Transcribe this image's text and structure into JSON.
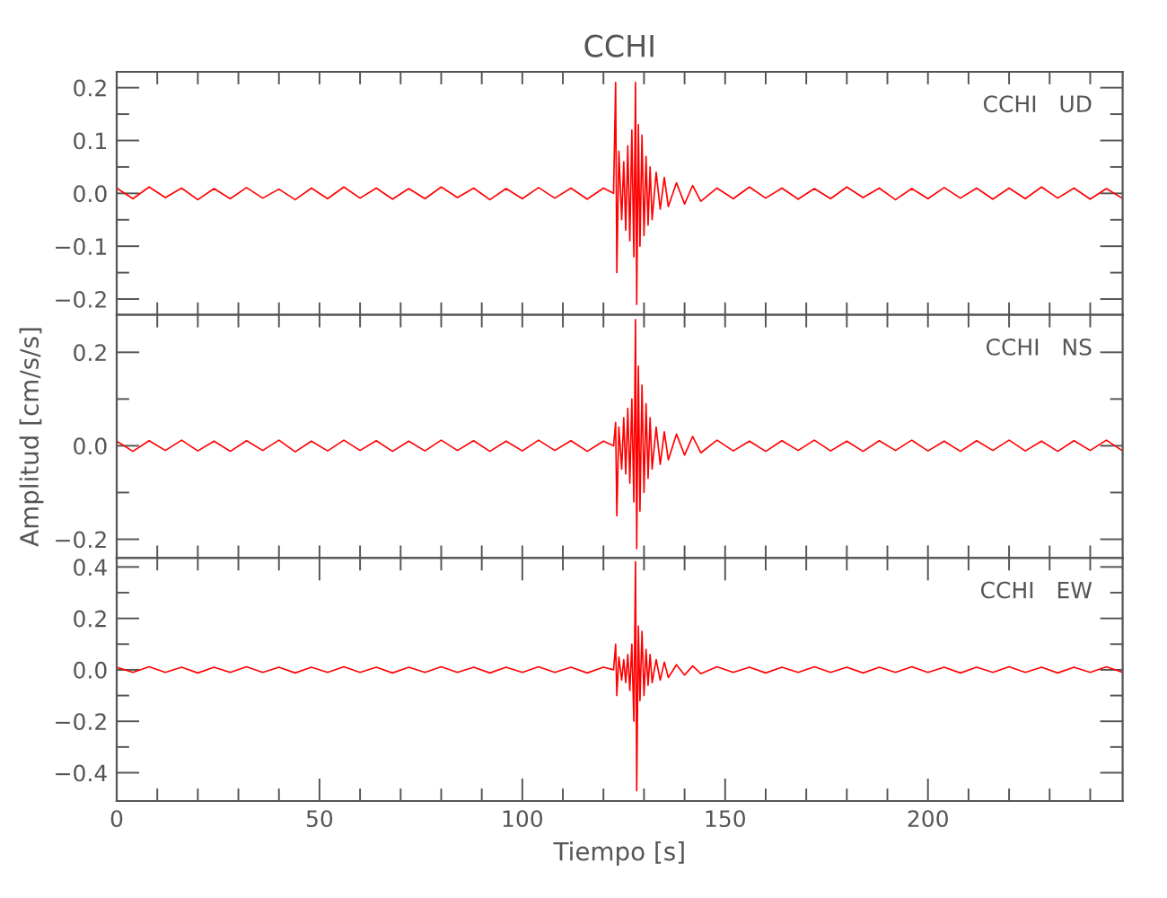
{
  "chart_data": [
    {
      "type": "line",
      "title": "CCHI",
      "annotations": [
        "CCHI   UD"
      ],
      "xlim": [
        0,
        248
      ],
      "ylim": [
        -0.23,
        0.23
      ],
      "tick_labels": "y",
      "grid": false,
      "legend": false,
      "xticks": [
        {
          "value": 0,
          "label": null
        },
        {
          "value": 10,
          "label": null
        },
        {
          "value": 20,
          "label": null
        },
        {
          "value": 30,
          "label": null
        },
        {
          "value": 40,
          "label": null
        },
        {
          "value": 50,
          "label": null
        },
        {
          "value": 60,
          "label": null
        },
        {
          "value": 70,
          "label": null
        },
        {
          "value": 80,
          "label": null
        },
        {
          "value": 90,
          "label": null
        },
        {
          "value": 100,
          "label": null
        },
        {
          "value": 110,
          "label": null
        },
        {
          "value": 120,
          "label": null
        },
        {
          "value": 130,
          "label": null
        },
        {
          "value": 140,
          "label": null
        },
        {
          "value": 150,
          "label": null
        },
        {
          "value": 160,
          "label": null
        },
        {
          "value": 170,
          "label": null
        },
        {
          "value": 180,
          "label": null
        },
        {
          "value": 190,
          "label": null
        },
        {
          "value": 200,
          "label": null
        },
        {
          "value": 210,
          "label": null
        },
        {
          "value": 220,
          "label": null
        },
        {
          "value": 230,
          "label": null
        },
        {
          "value": 240,
          "label": null
        }
      ],
      "yticks": [
        {
          "value": -0.2,
          "label": "−0.2"
        },
        {
          "value": -0.15,
          "label": null
        },
        {
          "value": -0.1,
          "label": "−0.1"
        },
        {
          "value": -0.05,
          "label": null
        },
        {
          "value": 0,
          "label": "0.0"
        },
        {
          "value": 0.05,
          "label": null
        },
        {
          "value": 0.1,
          "label": "0.1"
        },
        {
          "value": 0.15,
          "label": null
        },
        {
          "value": 0.2,
          "label": "0.2"
        }
      ],
      "series": [
        {
          "color": "#ff0000",
          "x": [
            0,
            4,
            8,
            12,
            16,
            20,
            24,
            28,
            32,
            36,
            40,
            44,
            48,
            52,
            56,
            60,
            64,
            68,
            72,
            76,
            80,
            84,
            88,
            92,
            96,
            100,
            104,
            108,
            112,
            116,
            120,
            122.5,
            123,
            123.3,
            123.8,
            124.5,
            125,
            125.5,
            126,
            126.5,
            127,
            127.5,
            127.9,
            128.2,
            128.6,
            129,
            129.5,
            130,
            130.5,
            131,
            131.5,
            132,
            133,
            134,
            135,
            136,
            138,
            140,
            142,
            144,
            148,
            152,
            156,
            160,
            164,
            168,
            172,
            176,
            180,
            184,
            188,
            192,
            196,
            200,
            204,
            208,
            212,
            216,
            220,
            224,
            228,
            232,
            236,
            240,
            244,
            248
          ],
          "values": [
            0.01,
            -0.01,
            0.012,
            -0.008,
            0.01,
            -0.012,
            0.009,
            -0.01,
            0.011,
            -0.009,
            0.008,
            -0.012,
            0.01,
            -0.01,
            0.012,
            -0.009,
            0.01,
            -0.011,
            0.009,
            -0.01,
            0.012,
            -0.008,
            0.01,
            -0.012,
            0.009,
            -0.01,
            0.011,
            -0.009,
            0.01,
            -0.011,
            0.01,
            0.0,
            0.21,
            -0.15,
            0.08,
            -0.05,
            0.06,
            -0.07,
            0.09,
            -0.09,
            0.12,
            -0.12,
            0.21,
            -0.21,
            0.13,
            -0.1,
            0.11,
            -0.08,
            0.07,
            -0.06,
            0.05,
            -0.05,
            0.04,
            -0.03,
            0.03,
            -0.025,
            0.02,
            -0.02,
            0.015,
            -0.015,
            0.01,
            -0.01,
            0.012,
            -0.009,
            0.01,
            -0.011,
            0.009,
            -0.01,
            0.012,
            -0.008,
            0.01,
            -0.012,
            0.009,
            -0.01,
            0.011,
            -0.009,
            0.01,
            -0.011,
            0.01,
            -0.01,
            0.012,
            -0.009,
            0.01,
            -0.011,
            0.009,
            -0.01
          ]
        }
      ]
    },
    {
      "type": "line",
      "ylabel": "Amplitud [cm/s/s]",
      "annotations": [
        "CCHI   NS"
      ],
      "xlim": [
        0,
        248
      ],
      "ylim": [
        -0.24,
        0.28
      ],
      "tick_labels": "y",
      "grid": false,
      "legend": false,
      "xticks": [
        {
          "value": 0,
          "label": null
        },
        {
          "value": 10,
          "label": null
        },
        {
          "value": 20,
          "label": null
        },
        {
          "value": 30,
          "label": null
        },
        {
          "value": 40,
          "label": null
        },
        {
          "value": 50,
          "label": null
        },
        {
          "value": 60,
          "label": null
        },
        {
          "value": 70,
          "label": null
        },
        {
          "value": 80,
          "label": null
        },
        {
          "value": 90,
          "label": null
        },
        {
          "value": 100,
          "label": null
        },
        {
          "value": 110,
          "label": null
        },
        {
          "value": 120,
          "label": null
        },
        {
          "value": 130,
          "label": null
        },
        {
          "value": 140,
          "label": null
        },
        {
          "value": 150,
          "label": null
        },
        {
          "value": 160,
          "label": null
        },
        {
          "value": 170,
          "label": null
        },
        {
          "value": 180,
          "label": null
        },
        {
          "value": 190,
          "label": null
        },
        {
          "value": 200,
          "label": null
        },
        {
          "value": 210,
          "label": null
        },
        {
          "value": 220,
          "label": null
        },
        {
          "value": 230,
          "label": null
        },
        {
          "value": 240,
          "label": null
        }
      ],
      "yticks": [
        {
          "value": -0.2,
          "label": "−0.2"
        },
        {
          "value": -0.1,
          "label": null
        },
        {
          "value": 0,
          "label": "0.0"
        },
        {
          "value": 0.1,
          "label": null
        },
        {
          "value": 0.2,
          "label": "0.2"
        }
      ],
      "series": [
        {
          "color": "#ff0000",
          "x": [
            0,
            4,
            8,
            12,
            16,
            20,
            24,
            28,
            32,
            36,
            40,
            44,
            48,
            52,
            56,
            60,
            64,
            68,
            72,
            76,
            80,
            84,
            88,
            92,
            96,
            100,
            104,
            108,
            112,
            116,
            120,
            122.5,
            123,
            123.3,
            123.8,
            124.5,
            125,
            125.5,
            126,
            126.5,
            127,
            127.5,
            127.9,
            128.2,
            128.6,
            129,
            129.5,
            130,
            130.5,
            131,
            131.5,
            132,
            133,
            134,
            135,
            136,
            138,
            140,
            142,
            144,
            148,
            152,
            156,
            160,
            164,
            168,
            172,
            176,
            180,
            184,
            188,
            192,
            196,
            200,
            204,
            208,
            212,
            216,
            220,
            224,
            228,
            232,
            236,
            240,
            244,
            248
          ],
          "values": [
            0.01,
            -0.012,
            0.011,
            -0.01,
            0.012,
            -0.011,
            0.01,
            -0.012,
            0.011,
            -0.01,
            0.012,
            -0.013,
            0.01,
            -0.011,
            0.012,
            -0.01,
            0.011,
            -0.012,
            0.01,
            -0.011,
            0.012,
            -0.01,
            0.011,
            -0.012,
            0.01,
            -0.011,
            0.012,
            -0.01,
            0.011,
            -0.012,
            0.01,
            0.0,
            0.05,
            -0.15,
            0.04,
            -0.05,
            0.06,
            -0.06,
            0.08,
            -0.08,
            0.1,
            -0.12,
            0.27,
            -0.22,
            0.17,
            -0.14,
            0.13,
            -0.1,
            0.09,
            -0.07,
            0.06,
            -0.05,
            0.04,
            -0.04,
            0.03,
            -0.03,
            0.025,
            -0.02,
            0.02,
            -0.015,
            0.012,
            -0.011,
            0.01,
            -0.012,
            0.011,
            -0.01,
            0.012,
            -0.011,
            0.01,
            -0.012,
            0.011,
            -0.01,
            0.012,
            -0.011,
            0.01,
            -0.012,
            0.011,
            -0.01,
            0.012,
            -0.011,
            0.01,
            -0.012,
            0.011,
            -0.01,
            0.012,
            -0.011
          ]
        }
      ]
    },
    {
      "type": "line",
      "xlabel": "Tiempo [s]",
      "annotations": [
        "CCHI   EW"
      ],
      "xlim": [
        0,
        248
      ],
      "ylim": [
        -0.51,
        0.435
      ],
      "grid": false,
      "legend": false,
      "xticks": [
        {
          "value": 0,
          "label": "0"
        },
        {
          "value": 10,
          "label": null
        },
        {
          "value": 20,
          "label": null
        },
        {
          "value": 30,
          "label": null
        },
        {
          "value": 40,
          "label": null
        },
        {
          "value": 50,
          "label": "50"
        },
        {
          "value": 60,
          "label": null
        },
        {
          "value": 70,
          "label": null
        },
        {
          "value": 80,
          "label": null
        },
        {
          "value": 90,
          "label": null
        },
        {
          "value": 100,
          "label": "100"
        },
        {
          "value": 110,
          "label": null
        },
        {
          "value": 120,
          "label": null
        },
        {
          "value": 130,
          "label": null
        },
        {
          "value": 140,
          "label": null
        },
        {
          "value": 150,
          "label": "150"
        },
        {
          "value": 160,
          "label": null
        },
        {
          "value": 170,
          "label": null
        },
        {
          "value": 180,
          "label": null
        },
        {
          "value": 190,
          "label": null
        },
        {
          "value": 200,
          "label": "200"
        },
        {
          "value": 210,
          "label": null
        },
        {
          "value": 220,
          "label": null
        },
        {
          "value": 230,
          "label": null
        },
        {
          "value": 240,
          "label": null
        }
      ],
      "yticks": [
        {
          "value": -0.4,
          "label": "−0.4"
        },
        {
          "value": -0.3,
          "label": null
        },
        {
          "value": -0.2,
          "label": "−0.2"
        },
        {
          "value": -0.1,
          "label": null
        },
        {
          "value": 0,
          "label": "0.0"
        },
        {
          "value": 0.1,
          "label": null
        },
        {
          "value": 0.2,
          "label": "0.2"
        },
        {
          "value": 0.3,
          "label": null
        },
        {
          "value": 0.4,
          "label": "0.4"
        }
      ],
      "series": [
        {
          "color": "#ff0000",
          "x": [
            0,
            4,
            8,
            12,
            16,
            20,
            24,
            28,
            32,
            36,
            40,
            44,
            48,
            52,
            56,
            60,
            64,
            68,
            72,
            76,
            80,
            84,
            88,
            92,
            96,
            100,
            104,
            108,
            112,
            116,
            120,
            122.5,
            123,
            123.3,
            123.8,
            124.5,
            125,
            125.5,
            126,
            126.5,
            127,
            127.5,
            127.9,
            128.2,
            128.6,
            129,
            129.5,
            130,
            130.5,
            131,
            131.5,
            132,
            133,
            134,
            135,
            136,
            138,
            140,
            142,
            144,
            148,
            152,
            156,
            160,
            164,
            168,
            172,
            176,
            180,
            184,
            188,
            192,
            196,
            200,
            204,
            208,
            212,
            216,
            220,
            224,
            228,
            232,
            236,
            240,
            244,
            248
          ],
          "values": [
            0.01,
            -0.01,
            0.012,
            -0.01,
            0.01,
            -0.012,
            0.01,
            -0.01,
            0.012,
            -0.01,
            0.01,
            -0.012,
            0.01,
            -0.01,
            0.012,
            -0.01,
            0.01,
            -0.012,
            0.01,
            -0.01,
            0.012,
            -0.01,
            0.01,
            -0.012,
            0.01,
            -0.01,
            0.012,
            -0.01,
            0.01,
            -0.012,
            0.01,
            0.0,
            0.1,
            -0.1,
            0.05,
            -0.04,
            0.04,
            -0.05,
            0.06,
            -0.08,
            0.1,
            -0.2,
            0.42,
            -0.47,
            0.17,
            -0.12,
            0.15,
            -0.1,
            0.08,
            -0.06,
            0.06,
            -0.05,
            0.04,
            -0.04,
            0.03,
            -0.03,
            0.02,
            -0.02,
            0.015,
            -0.015,
            0.012,
            -0.01,
            0.01,
            -0.012,
            0.01,
            -0.01,
            0.012,
            -0.01,
            0.01,
            -0.012,
            0.01,
            -0.01,
            0.012,
            -0.01,
            0.01,
            -0.012,
            0.01,
            -0.01,
            0.012,
            -0.01,
            0.01,
            -0.012,
            0.01,
            -0.01,
            0.012,
            -0.01
          ]
        }
      ]
    }
  ]
}
